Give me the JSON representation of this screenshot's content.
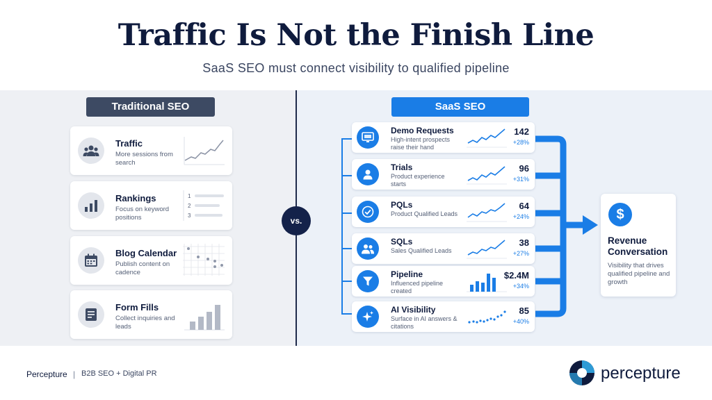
{
  "header": {
    "title": "Traffic Is Not the Finish Line",
    "subtitle": "SaaS SEO must connect visibility to qualified pipeline"
  },
  "left": {
    "label": "Traditional SEO",
    "items": [
      {
        "title": "Traffic",
        "desc": "More sessions from search",
        "icon": "users-icon"
      },
      {
        "title": "Rankings",
        "desc": "Focus on keyword positions",
        "icon": "bar-chart-icon",
        "ranks": [
          "1",
          "2",
          "3"
        ]
      },
      {
        "title": "Blog Calendar",
        "desc": "Publish content on cadence",
        "icon": "calendar-icon"
      },
      {
        "title": "Form Fills",
        "desc": "Collect inquiries and leads",
        "icon": "form-icon"
      }
    ]
  },
  "vs_label": "vs.",
  "right": {
    "label": "SaaS SEO",
    "items": [
      {
        "title": "Demo Requests",
        "desc": "High-intent prospects raise their hand",
        "value": "142",
        "change": "+28%",
        "icon": "monitor-icon"
      },
      {
        "title": "Trials",
        "desc": "Product experience starts",
        "value": "96",
        "change": "+31%",
        "icon": "user-icon"
      },
      {
        "title": "PQLs",
        "desc": "Product Qualified Leads",
        "value": "64",
        "change": "+24%",
        "icon": "check-icon"
      },
      {
        "title": "SQLs",
        "desc": "Sales Qualified Leads",
        "value": "38",
        "change": "+27%",
        "icon": "people-icon"
      },
      {
        "title": "Pipeline",
        "desc": "Influenced pipeline created",
        "value": "$2.4M",
        "change": "+34%",
        "icon": "funnel-icon"
      },
      {
        "title": "AI Visibility",
        "desc": "Surface in AI answers & citations",
        "value": "85",
        "change": "+40%",
        "icon": "sparkle-icon"
      }
    ]
  },
  "outcome": {
    "icon_glyph": "$",
    "title": "Revenue Conversation",
    "desc": "Visibility that drives qualified pipeline and growth"
  },
  "footer": {
    "brand": "Percepture",
    "separator": "|",
    "tagline": "B2B SEO + Digital PR",
    "logo_text": "percepture"
  },
  "colors": {
    "navy": "#0f1b3d",
    "accent_blue": "#1a7de6",
    "slate": "#3d4a63"
  }
}
